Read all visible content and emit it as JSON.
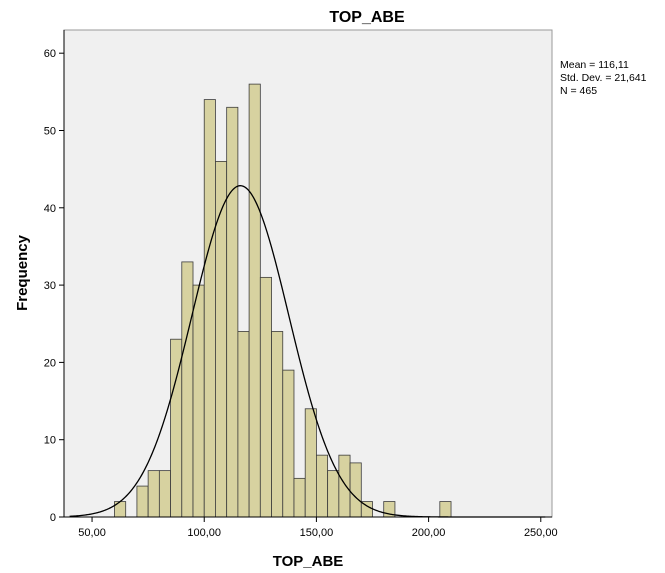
{
  "chart_data": {
    "type": "bar",
    "title": "TOP_ABE",
    "xlabel": "TOP_ABE",
    "ylabel": "Frequency",
    "xlim": [
      37.5,
      255
    ],
    "ylim": [
      0,
      63
    ],
    "bin_width": 5,
    "x_ticks": [
      {
        "value": 50,
        "label": "50,00"
      },
      {
        "value": 100,
        "label": "100,00"
      },
      {
        "value": 150,
        "label": "150,00"
      },
      {
        "value": 200,
        "label": "200,00"
      },
      {
        "value": 250,
        "label": "250,00"
      }
    ],
    "y_ticks": [
      {
        "value": 0,
        "label": "0"
      },
      {
        "value": 10,
        "label": "10"
      },
      {
        "value": 20,
        "label": "20"
      },
      {
        "value": 30,
        "label": "30"
      },
      {
        "value": 40,
        "label": "40"
      },
      {
        "value": 50,
        "label": "50"
      },
      {
        "value": 60,
        "label": "60"
      }
    ],
    "bins": [
      {
        "start": 60,
        "end": 65,
        "count": 2
      },
      {
        "start": 70,
        "end": 75,
        "count": 4
      },
      {
        "start": 75,
        "end": 80,
        "count": 6
      },
      {
        "start": 80,
        "end": 85,
        "count": 6
      },
      {
        "start": 85,
        "end": 90,
        "count": 23
      },
      {
        "start": 90,
        "end": 95,
        "count": 33
      },
      {
        "start": 95,
        "end": 100,
        "count": 30
      },
      {
        "start": 100,
        "end": 105,
        "count": 54
      },
      {
        "start": 105,
        "end": 110,
        "count": 46
      },
      {
        "start": 110,
        "end": 115,
        "count": 53
      },
      {
        "start": 115,
        "end": 120,
        "count": 24
      },
      {
        "start": 120,
        "end": 125,
        "count": 56
      },
      {
        "start": 125,
        "end": 130,
        "count": 31
      },
      {
        "start": 130,
        "end": 135,
        "count": 24
      },
      {
        "start": 135,
        "end": 140,
        "count": 19
      },
      {
        "start": 140,
        "end": 145,
        "count": 5
      },
      {
        "start": 145,
        "end": 150,
        "count": 14
      },
      {
        "start": 150,
        "end": 155,
        "count": 8
      },
      {
        "start": 155,
        "end": 160,
        "count": 6
      },
      {
        "start": 160,
        "end": 165,
        "count": 8
      },
      {
        "start": 165,
        "end": 170,
        "count": 7
      },
      {
        "start": 170,
        "end": 175,
        "count": 2
      },
      {
        "start": 180,
        "end": 185,
        "count": 2
      },
      {
        "start": 205,
        "end": 210,
        "count": 2
      }
    ],
    "normal_curve": {
      "mean": 116.11,
      "std_dev": 21.641,
      "n": 465
    },
    "stats_text": [
      "Mean = 116,11",
      "Std. Dev. = 21,641",
      "N = 465"
    ],
    "grid": false,
    "legend": "none",
    "colors": {
      "bar_fill": "#d7d2a0",
      "bar_stroke": "#3c3c3c",
      "plot_background": "#f0f0f0",
      "curve": "#000000"
    }
  }
}
